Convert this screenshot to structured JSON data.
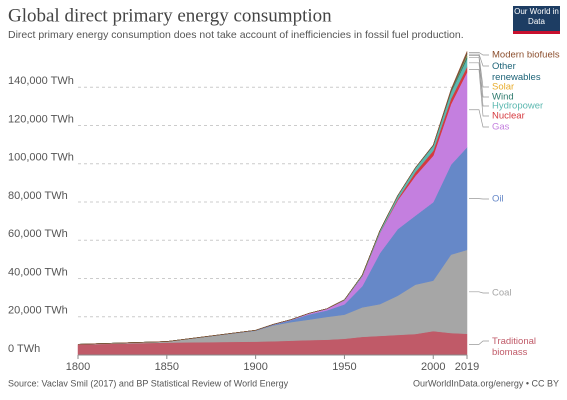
{
  "chart_data": {
    "type": "stacked-area",
    "title": "Global direct primary energy consumption",
    "subtitle": "Direct primary energy consumption does not take account of inefficiencies in fossil fuel production.",
    "logo": "Our World in Data",
    "source": "Source: Vaclav Smil (2017) and BP Statistical Review of World Energy",
    "credit": "OurWorldInData.org/energy • CC BY",
    "x": [
      1800,
      1850,
      1900,
      1910,
      1920,
      1930,
      1940,
      1950,
      1960,
      1970,
      1980,
      1990,
      2000,
      2010,
      2019
    ],
    "xlim": [
      1800,
      2019
    ],
    "xticks": [
      1800,
      1850,
      1900,
      1950,
      2000,
      2019
    ],
    "ylim": [
      0,
      160000
    ],
    "yticks": [
      {
        "value": 0,
        "label": "0 TWh"
      },
      {
        "value": 20000,
        "label": "20,000 TWh"
      },
      {
        "value": 40000,
        "label": "40,000 TWh"
      },
      {
        "value": 60000,
        "label": "60,000 TWh"
      },
      {
        "value": 80000,
        "label": "80,000 TWh"
      },
      {
        "value": 100000,
        "label": "100,000 TWh"
      },
      {
        "value": 120000,
        "label": "120,000 TWh"
      },
      {
        "value": 140000,
        "label": "140,000 TWh"
      }
    ],
    "grid": true,
    "series": [
      {
        "name": "Traditional biomass",
        "color": "#c05a68",
        "values": [
          5500,
          6500,
          7000,
          7200,
          7500,
          7800,
          8000,
          8500,
          9500,
          10000,
          10500,
          11000,
          12500,
          11500,
          11111
        ]
      },
      {
        "name": "Coal",
        "color": "#a6a6a6",
        "values": [
          100,
          550,
          5700,
          8300,
          9700,
          10700,
          11900,
          12600,
          15400,
          16600,
          20500,
          25800,
          26400,
          41000,
          43849
        ]
      },
      {
        "name": "Oil",
        "color": "#6688c8",
        "values": [
          0,
          0,
          180,
          380,
          1100,
          2700,
          3400,
          5400,
          11000,
          26700,
          34800,
          36100,
          41000,
          47000,
          53620
        ]
      },
      {
        "name": "Gas",
        "color": "#c47fdf",
        "values": [
          0,
          0,
          60,
          170,
          230,
          590,
          860,
          2100,
          5200,
          10600,
          15100,
          20800,
          24300,
          31700,
          39292
        ]
      },
      {
        "name": "Nuclear",
        "color": "#d53a3f",
        "values": [
          0,
          0,
          0,
          0,
          0,
          0,
          0,
          0,
          0,
          80,
          713,
          2001,
          2580,
          2767,
          2796
        ]
      },
      {
        "name": "Hydropower",
        "color": "#5cb8b0",
        "values": [
          0,
          0,
          0,
          0,
          0,
          0,
          0,
          330,
          690,
          1180,
          1730,
          2160,
          2650,
          3420,
          4222
        ]
      },
      {
        "name": "Wind",
        "color": "#2f7b6e",
        "values": [
          0,
          0,
          0,
          0,
          0,
          0,
          0,
          0,
          0,
          0,
          0,
          0,
          31,
          342,
          1420
        ]
      },
      {
        "name": "Solar",
        "color": "#e8ac2c",
        "values": [
          0,
          0,
          0,
          0,
          0,
          0,
          0,
          0,
          0,
          0,
          0,
          0,
          0,
          32,
          724
        ]
      },
      {
        "name": "Other renewables",
        "color": "#1e6478",
        "values": [
          0,
          0,
          0,
          0,
          0,
          0,
          0,
          0,
          0,
          0,
          60,
          160,
          290,
          420,
          600
        ]
      },
      {
        "name": "Modern biofuels",
        "color": "#8c4f2e",
        "values": [
          0,
          0,
          0,
          0,
          0,
          0,
          0,
          0,
          0,
          0,
          0,
          80,
          120,
          680,
          1100
        ]
      }
    ]
  }
}
